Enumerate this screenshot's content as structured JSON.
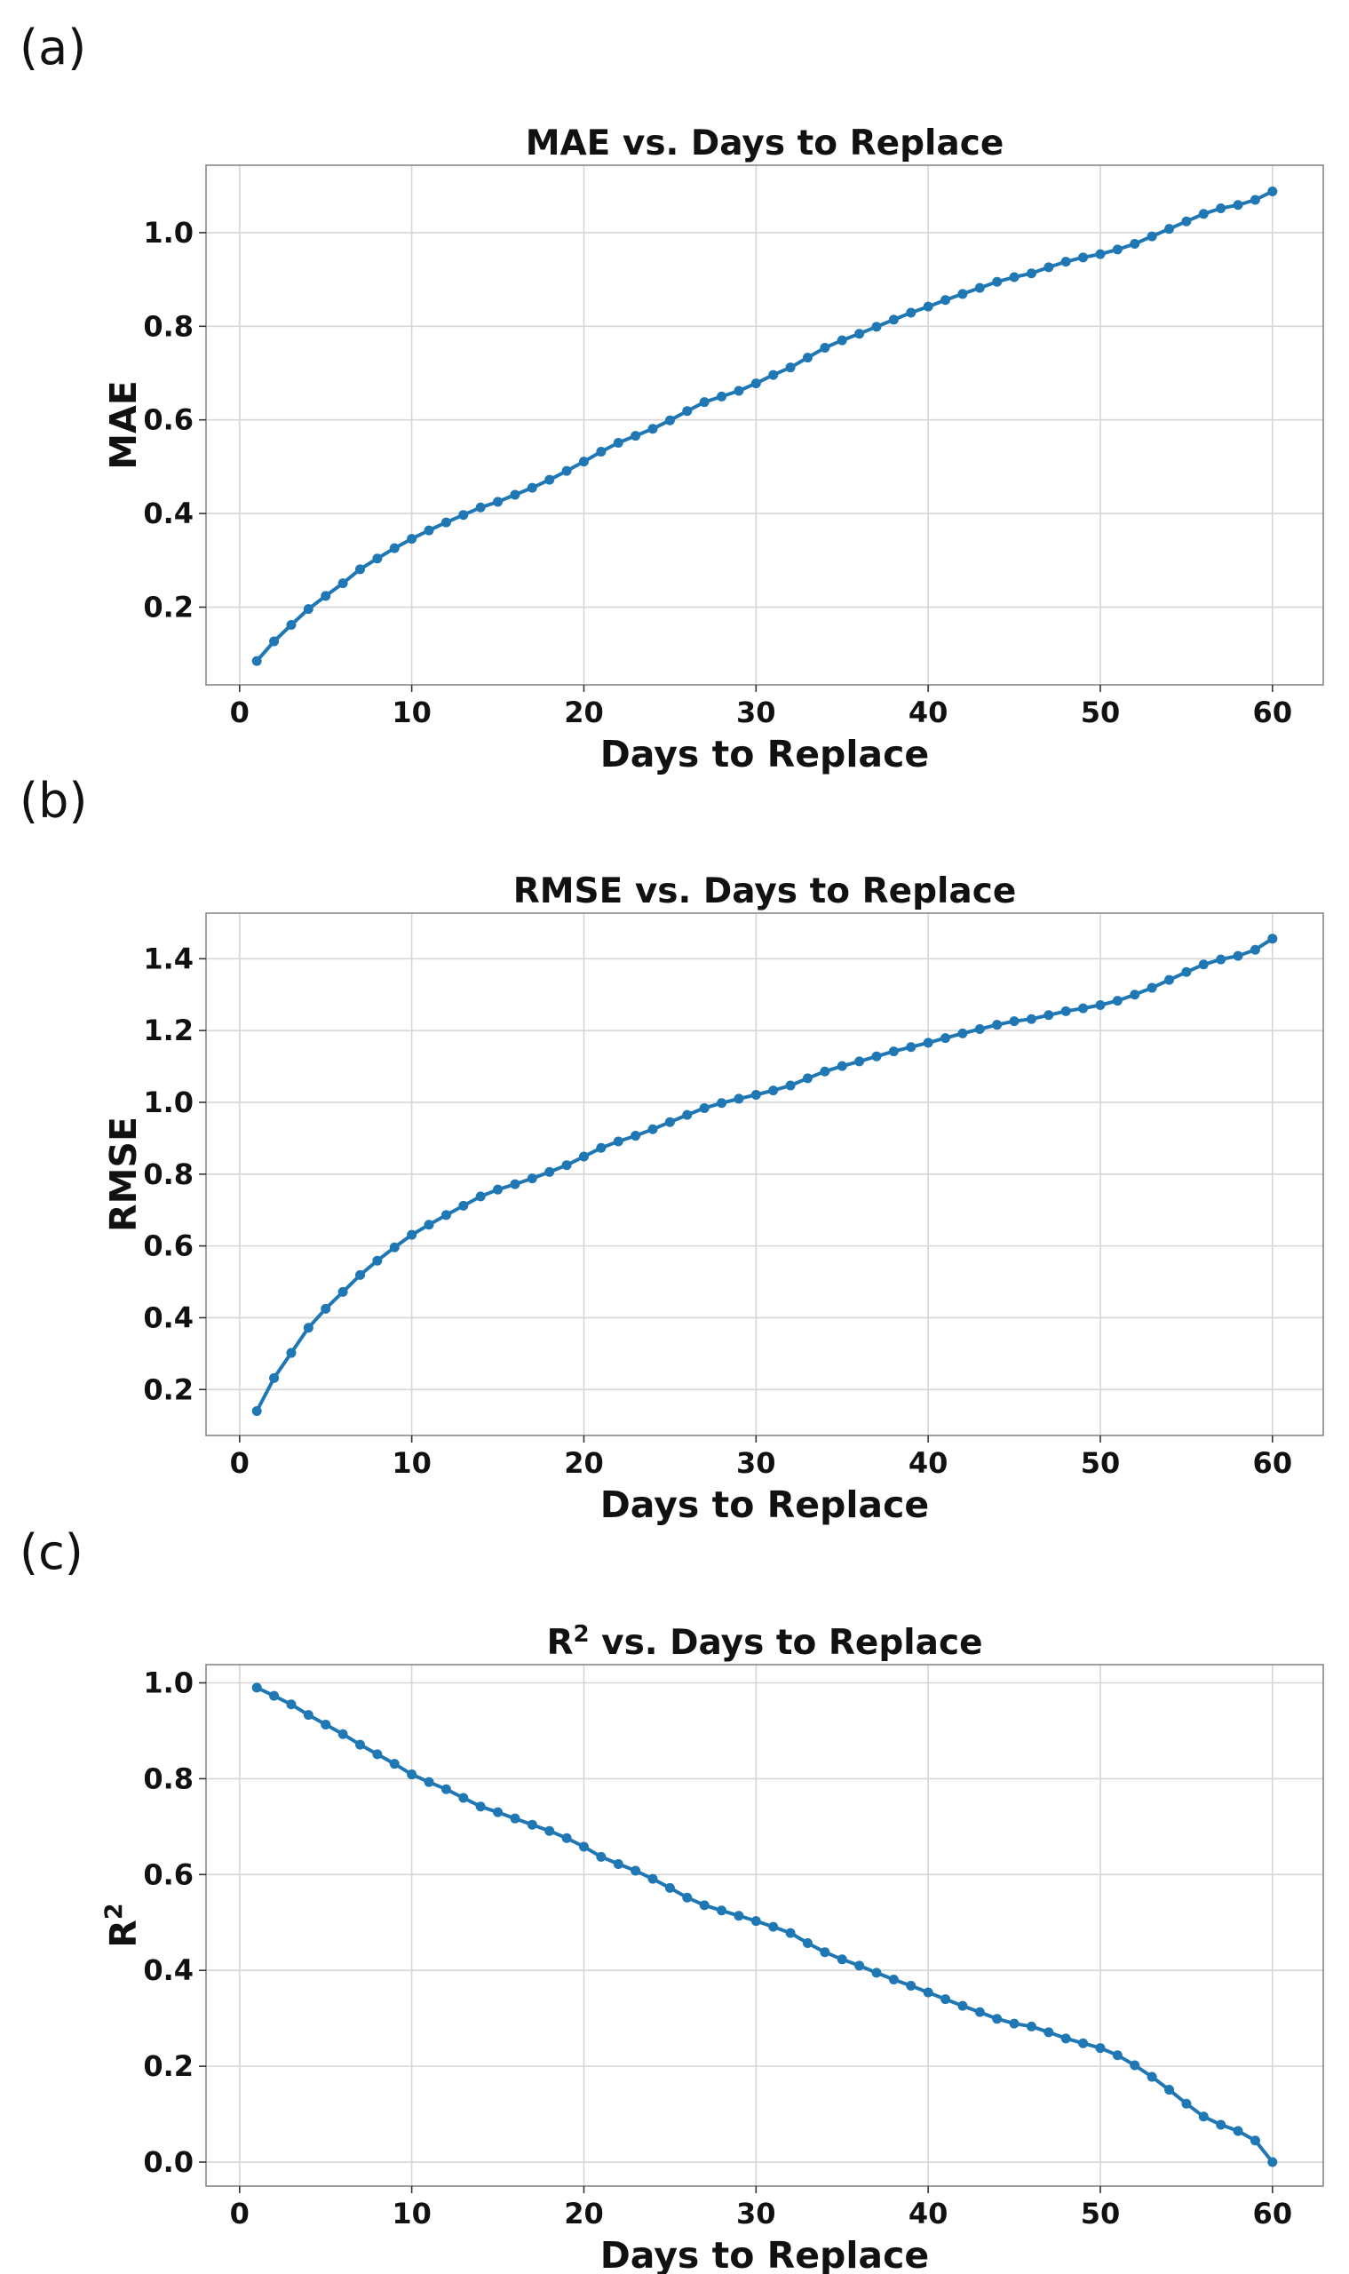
{
  "panel_labels": [
    "(a)",
    "(b)",
    "(c)"
  ],
  "chart_data": [
    {
      "type": "line",
      "title": "MAE vs. Days to Replace",
      "title_main": "MAE vs. Days to Replace",
      "xlabel": "Days to Replace",
      "ylabel": "MAE",
      "xlim": [
        -1.95,
        62.95
      ],
      "ylim": [
        0.034,
        1.144
      ],
      "xticks": [
        0,
        10,
        20,
        30,
        40,
        50,
        60
      ],
      "yticks": [
        0.2,
        0.4,
        0.6,
        0.8,
        1.0
      ],
      "ytick_labels": [
        "0.2",
        "0.4",
        "0.6",
        "0.8",
        "1.0"
      ],
      "grid": true,
      "color": "#1f77b4",
      "series": [
        {
          "name": "MAE",
          "x": [
            1,
            2,
            3,
            4,
            5,
            6,
            7,
            8,
            9,
            10,
            11,
            12,
            13,
            14,
            15,
            16,
            17,
            18,
            19,
            20,
            21,
            22,
            23,
            24,
            25,
            26,
            27,
            28,
            29,
            30,
            31,
            32,
            33,
            34,
            35,
            36,
            37,
            38,
            39,
            40,
            41,
            42,
            43,
            44,
            45,
            46,
            47,
            48,
            49,
            50,
            51,
            52,
            53,
            54,
            55,
            56,
            57,
            58,
            59,
            60
          ],
          "values": [
            0.085,
            0.127,
            0.162,
            0.196,
            0.224,
            0.251,
            0.281,
            0.304,
            0.326,
            0.346,
            0.364,
            0.381,
            0.397,
            0.413,
            0.425,
            0.44,
            0.455,
            0.472,
            0.491,
            0.511,
            0.532,
            0.551,
            0.566,
            0.581,
            0.599,
            0.619,
            0.638,
            0.65,
            0.662,
            0.678,
            0.696,
            0.712,
            0.733,
            0.754,
            0.77,
            0.784,
            0.799,
            0.814,
            0.829,
            0.842,
            0.856,
            0.869,
            0.882,
            0.895,
            0.905,
            0.913,
            0.926,
            0.938,
            0.947,
            0.954,
            0.964,
            0.976,
            0.992,
            1.008,
            1.024,
            1.04,
            1.052,
            1.059,
            1.07,
            1.088
          ]
        }
      ]
    },
    {
      "type": "line",
      "title": "RMSE vs. Days to Replace",
      "title_main": "RMSE vs. Days to Replace",
      "xlabel": "Days to Replace",
      "ylabel": "RMSE",
      "xlim": [
        -1.95,
        62.95
      ],
      "ylim": [
        0.072,
        1.527
      ],
      "xticks": [
        0,
        10,
        20,
        30,
        40,
        50,
        60
      ],
      "yticks": [
        0.2,
        0.4,
        0.6,
        0.8,
        1.0,
        1.2,
        1.4
      ],
      "ytick_labels": [
        "0.2",
        "0.4",
        "0.6",
        "0.8",
        "1.0",
        "1.2",
        "1.4"
      ],
      "grid": true,
      "color": "#1f77b4",
      "series": [
        {
          "name": "RMSE",
          "x": [
            1,
            2,
            3,
            4,
            5,
            6,
            7,
            8,
            9,
            10,
            11,
            12,
            13,
            14,
            15,
            16,
            17,
            18,
            19,
            20,
            21,
            22,
            23,
            24,
            25,
            26,
            27,
            28,
            29,
            30,
            31,
            32,
            33,
            34,
            35,
            36,
            37,
            38,
            39,
            40,
            41,
            42,
            43,
            44,
            45,
            46,
            47,
            48,
            49,
            50,
            51,
            52,
            53,
            54,
            55,
            56,
            57,
            58,
            59,
            60
          ],
          "values": [
            0.14,
            0.232,
            0.302,
            0.372,
            0.425,
            0.472,
            0.519,
            0.559,
            0.596,
            0.631,
            0.659,
            0.686,
            0.712,
            0.738,
            0.757,
            0.772,
            0.788,
            0.806,
            0.825,
            0.849,
            0.873,
            0.891,
            0.907,
            0.925,
            0.945,
            0.965,
            0.984,
            0.998,
            1.01,
            1.021,
            1.033,
            1.047,
            1.067,
            1.086,
            1.101,
            1.114,
            1.128,
            1.142,
            1.154,
            1.166,
            1.179,
            1.192,
            1.204,
            1.216,
            1.226,
            1.232,
            1.243,
            1.254,
            1.262,
            1.271,
            1.283,
            1.3,
            1.319,
            1.341,
            1.363,
            1.384,
            1.398,
            1.408,
            1.425,
            1.456
          ]
        }
      ]
    },
    {
      "type": "line",
      "title": "R² vs. Days to Replace",
      "title_main": "R",
      "title_sup": "2",
      "title_rest": " vs. Days to Replace",
      "xlabel": "Days to Replace",
      "ylabel": "R²",
      "ylabel_main": "R",
      "ylabel_sup": "2",
      "xlim": [
        -1.95,
        62.95
      ],
      "ylim": [
        -0.05,
        1.038
      ],
      "xticks": [
        0,
        10,
        20,
        30,
        40,
        50,
        60
      ],
      "yticks": [
        0.0,
        0.2,
        0.4,
        0.6,
        0.8,
        1.0
      ],
      "ytick_labels": [
        "0.0",
        "0.2",
        "0.4",
        "0.6",
        "0.8",
        "1.0"
      ],
      "grid": true,
      "color": "#1f77b4",
      "series": [
        {
          "name": "R²",
          "x": [
            1,
            2,
            3,
            4,
            5,
            6,
            7,
            8,
            9,
            10,
            11,
            12,
            13,
            14,
            15,
            16,
            17,
            18,
            19,
            20,
            21,
            22,
            23,
            24,
            25,
            26,
            27,
            28,
            29,
            30,
            31,
            32,
            33,
            34,
            35,
            36,
            37,
            38,
            39,
            40,
            41,
            42,
            43,
            44,
            45,
            46,
            47,
            48,
            49,
            50,
            51,
            52,
            53,
            54,
            55,
            56,
            57,
            58,
            59,
            60
          ],
          "values": [
            0.99,
            0.973,
            0.955,
            0.933,
            0.913,
            0.893,
            0.871,
            0.851,
            0.831,
            0.809,
            0.793,
            0.778,
            0.76,
            0.742,
            0.73,
            0.717,
            0.704,
            0.691,
            0.676,
            0.658,
            0.637,
            0.622,
            0.608,
            0.591,
            0.572,
            0.552,
            0.536,
            0.525,
            0.514,
            0.503,
            0.491,
            0.478,
            0.457,
            0.438,
            0.423,
            0.41,
            0.395,
            0.381,
            0.368,
            0.354,
            0.34,
            0.326,
            0.313,
            0.299,
            0.289,
            0.283,
            0.271,
            0.258,
            0.248,
            0.238,
            0.223,
            0.202,
            0.178,
            0.151,
            0.122,
            0.095,
            0.078,
            0.065,
            0.045,
            0.0
          ]
        }
      ]
    }
  ]
}
